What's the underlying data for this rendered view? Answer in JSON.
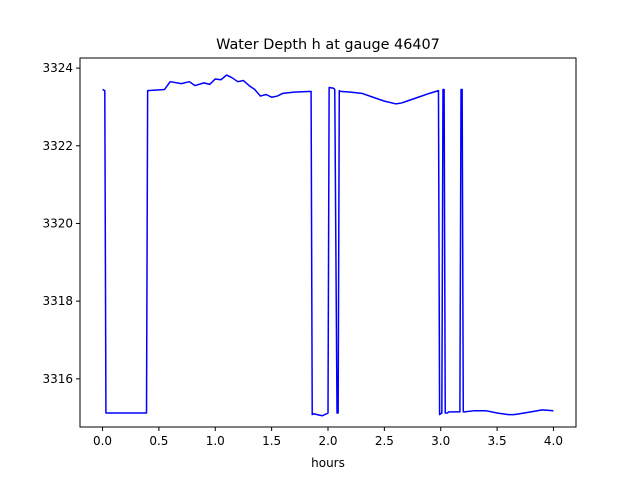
{
  "chart_data": {
    "type": "line",
    "title": "Water Depth h at gauge 46407",
    "xlabel": "hours",
    "ylabel": "",
    "xlim": [
      -0.2,
      4.2
    ],
    "ylim": [
      3314.76,
      3324.26
    ],
    "x_ticks": [
      "0.0",
      "0.5",
      "1.0",
      "1.5",
      "2.0",
      "2.5",
      "3.0",
      "3.5",
      "4.0"
    ],
    "y_ticks": [
      "3316",
      "3318",
      "3320",
      "3322",
      "3324"
    ],
    "grid": false,
    "legend": "none",
    "series": [
      {
        "color": "#0000ff",
        "x": [
          0.0,
          0.02,
          0.03,
          0.2,
          0.39,
          0.4,
          0.55,
          0.6,
          0.7,
          0.77,
          0.82,
          0.9,
          0.95,
          1.0,
          1.05,
          1.1,
          1.15,
          1.2,
          1.25,
          1.3,
          1.35,
          1.4,
          1.45,
          1.5,
          1.55,
          1.6,
          1.7,
          1.85,
          1.86,
          1.87,
          1.95,
          2.0,
          2.01,
          2.05,
          2.06,
          2.08,
          2.09,
          2.1,
          2.11,
          2.2,
          2.3,
          2.4,
          2.5,
          2.6,
          2.65,
          2.7,
          2.8,
          2.9,
          2.98,
          2.99,
          3.0,
          3.01,
          3.02,
          3.03,
          3.04,
          3.05,
          3.06,
          3.07,
          3.17,
          3.18,
          3.19,
          3.2,
          3.21,
          3.3,
          3.4,
          3.5,
          3.6,
          3.65,
          3.7,
          3.8,
          3.9,
          4.0
        ],
        "values": [
          3323.45,
          3323.42,
          3315.12,
          3315.12,
          3315.12,
          3323.42,
          3323.45,
          3323.65,
          3323.6,
          3323.65,
          3323.55,
          3323.62,
          3323.58,
          3323.72,
          3323.7,
          3323.82,
          3323.75,
          3323.65,
          3323.68,
          3323.55,
          3323.45,
          3323.28,
          3323.32,
          3323.25,
          3323.28,
          3323.35,
          3323.38,
          3323.4,
          3315.08,
          3315.1,
          3315.05,
          3315.12,
          3323.5,
          3323.48,
          3323.45,
          3315.12,
          3315.12,
          3323.42,
          3323.4,
          3323.38,
          3323.35,
          3323.25,
          3323.15,
          3323.08,
          3323.1,
          3323.15,
          3323.25,
          3323.35,
          3323.42,
          3315.08,
          3315.1,
          3315.12,
          3323.45,
          3323.45,
          3315.12,
          3315.12,
          3315.12,
          3315.15,
          3315.15,
          3323.45,
          3323.45,
          3315.15,
          3315.15,
          3315.18,
          3315.18,
          3315.12,
          3315.08,
          3315.08,
          3315.1,
          3315.15,
          3315.2,
          3315.18
        ]
      }
    ]
  }
}
